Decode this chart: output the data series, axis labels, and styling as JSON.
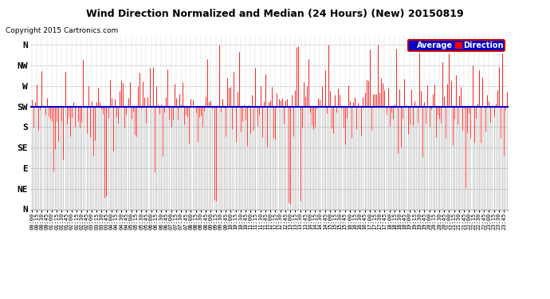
{
  "title": "Wind Direction Normalized and Median (24 Hours) (New) 20150819",
  "copyright": "Copyright 2015 Cartronics.com",
  "background_color": "#ffffff",
  "plot_bg_color": "#ffffff",
  "grid_color": "#aaaaaa",
  "line_color_red": "#ff0000",
  "line_color_dark": "#555555",
  "avg_line_color": "#0000cc",
  "avg_line_value": 225,
  "ytick_labels": [
    "N",
    "NW",
    "W",
    "SW",
    "S",
    "SE",
    "E",
    "NE",
    "N"
  ],
  "ytick_values": [
    360,
    315,
    270,
    225,
    180,
    135,
    90,
    45,
    0
  ],
  "ylim": [
    0,
    380
  ],
  "legend_avg_color": "#0000cc",
  "legend_dir_color": "#ff0000",
  "legend_avg_label": "Average",
  "legend_dir_label": "Direction",
  "n_points": 288,
  "avg_direction": 225,
  "seed": 42
}
